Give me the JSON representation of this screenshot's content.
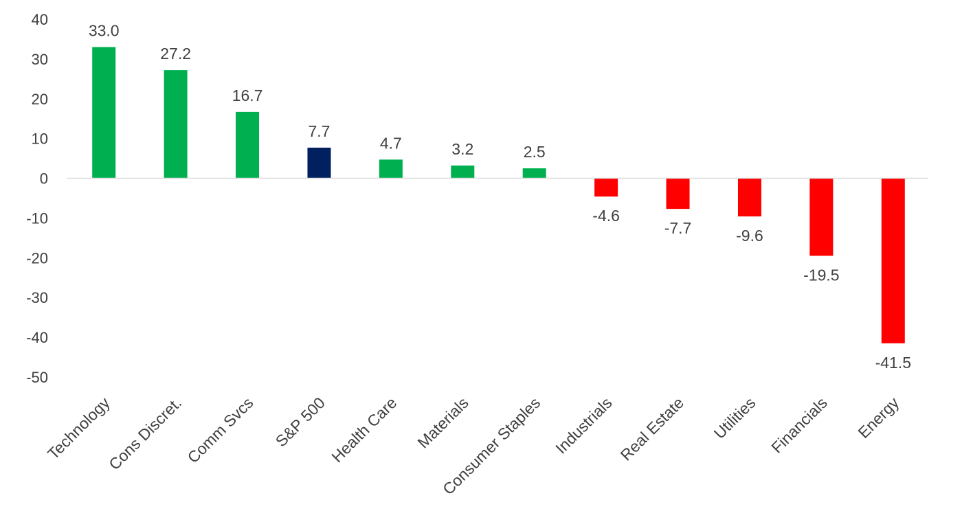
{
  "chart_data": {
    "type": "bar",
    "title": "",
    "xlabel": "",
    "ylabel": "",
    "ylim": [
      -50,
      40
    ],
    "yticks": [
      40,
      30,
      20,
      10,
      0,
      -10,
      -20,
      -30,
      -40,
      -50
    ],
    "grid": false,
    "legend": "none",
    "categories": [
      "Technology",
      "Cons Discret.",
      "Comm Svcs",
      "S&P 500",
      "Health Care",
      "Materials",
      "Consumer Staples",
      "Industrials",
      "Real Estate",
      "Utilities",
      "Financials",
      "Energy"
    ],
    "values": [
      33.0,
      27.2,
      16.7,
      7.7,
      4.7,
      3.2,
      2.5,
      -4.6,
      -7.7,
      -9.6,
      -19.5,
      -41.5
    ],
    "data_labels": [
      "33.0",
      "27.2",
      "16.7",
      "7.7",
      "4.7",
      "3.2",
      "2.5",
      "-4.6",
      "-7.7",
      "-9.6",
      "-19.5",
      "-41.5"
    ],
    "colors": {
      "positive": "#00b050",
      "negative": "#ff0000",
      "benchmark": "#002060",
      "axis": "#d9d9d9",
      "text": "#404040"
    },
    "benchmark_category": "S&P 500"
  }
}
